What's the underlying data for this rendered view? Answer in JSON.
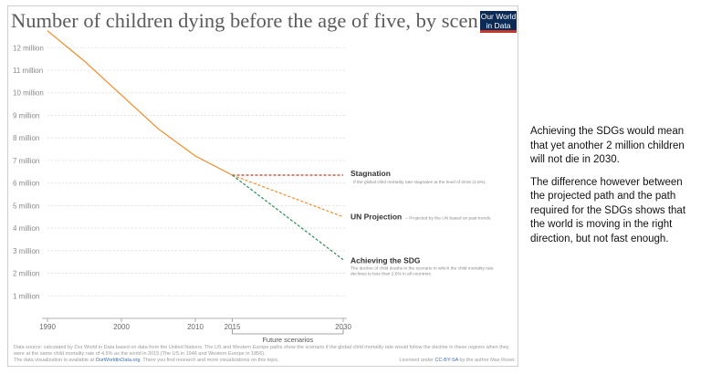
{
  "title": "Number of children dying before the age of five, by scenario",
  "logo": {
    "line1": "Our World",
    "line2": "in Data"
  },
  "side_text": [
    "Achieving the SDGs would mean that yet another 2 million children will not die in 2030.",
    "The difference however between the projected path and the path required for the SDGs shows that the world is moving in the right direction, but not fast enough."
  ],
  "footer": {
    "source": "Data source: calculated by Our World in Data based on data from the United Nations. The US and Western Europe paths show the scenario if the global child mortality rate would follow the decline in these regions when they were at the same child mortality rate of 4.5% as the world in 2015 (The US in 1946 and Western Europe in 1856).",
    "viz_prefix": "The data visualization is available at ",
    "viz_link": "OurWorldinData.org",
    "viz_suffix": ". There you find research and more visualizations on this topic.",
    "license_prefix": "Licensed under ",
    "license_link": "CC-BY-SA",
    "license_suffix": " by the author Max Roser."
  },
  "chart_data": {
    "type": "line",
    "xlim": [
      1990,
      2030
    ],
    "ylim": [
      0,
      12.9
    ],
    "x_ticks": [
      1990,
      2000,
      2010,
      2015,
      2030
    ],
    "y_ticks": [
      1,
      2,
      3,
      4,
      5,
      6,
      7,
      8,
      9,
      10,
      11,
      12
    ],
    "y_tick_labels": [
      "1 million",
      "2 million",
      "3 million",
      "4 million",
      "5 million",
      "6 million",
      "7 million",
      "8 million",
      "9 million",
      "10 million",
      "11 million",
      "12 million"
    ],
    "grid": "horizontal dotted",
    "bracket_label": "Future scenarios",
    "series": [
      {
        "name": "",
        "color": "#f28c28",
        "dashed": false,
        "x": [
          1990,
          1995,
          2000,
          2005,
          2010,
          2015
        ],
        "y": [
          12.75,
          11.4,
          9.9,
          8.4,
          7.2,
          6.35
        ]
      },
      {
        "name": "Stagnation",
        "note": "If the global child mortality rate stagnates at the level of 2015 (4.5%).",
        "color": "#c0392b",
        "dashed": true,
        "x": [
          2015,
          2030
        ],
        "y": [
          6.35,
          6.35
        ]
      },
      {
        "name": "UN Projection",
        "note": "– Projected by the UN based on past trends.",
        "color": "#f28c28",
        "dashed": true,
        "x": [
          2015,
          2030
        ],
        "y": [
          6.35,
          4.5
        ]
      },
      {
        "name": "Achieving the SDG",
        "note": "The decline of child deaths in the scenario in which the child mortality rate declines to less than 2.5% in all countries.",
        "color": "#2e8b57",
        "dashed": true,
        "x": [
          2015,
          2030
        ],
        "y": [
          6.35,
          2.6
        ]
      }
    ]
  }
}
